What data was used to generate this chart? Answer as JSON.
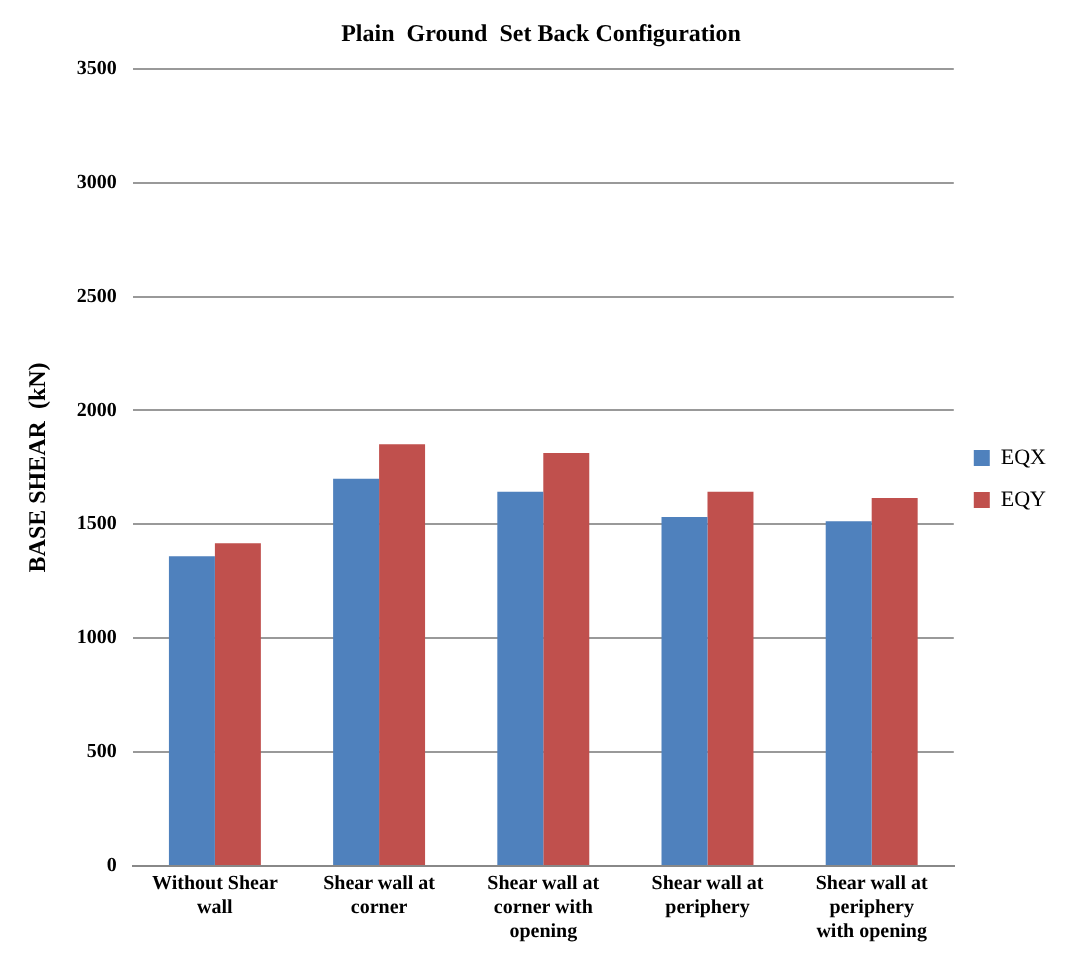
{
  "chart_data": {
    "type": "bar",
    "title": "Plain  Ground  Set Back Configuration",
    "ylabel": "BASE SHEAR  (kN)",
    "categories": [
      "Without Shear wall",
      "Shear wall at corner",
      "Shear wall at corner with opening",
      "Shear wall at periphery",
      "Shear wall at periphery with opening"
    ],
    "series": [
      {
        "name": "EQX",
        "color": "#4f81bd",
        "values": [
          1360,
          1700,
          1643,
          1532,
          1514
        ]
      },
      {
        "name": "EQY",
        "color": "#c0504d",
        "values": [
          1417,
          1852,
          1813,
          1643,
          1616
        ]
      }
    ],
    "ylim": [
      0,
      3500
    ],
    "yticks": [
      0,
      500,
      1000,
      1500,
      2000,
      2500,
      3000,
      3500
    ],
    "grid": "y",
    "legend": "right"
  }
}
